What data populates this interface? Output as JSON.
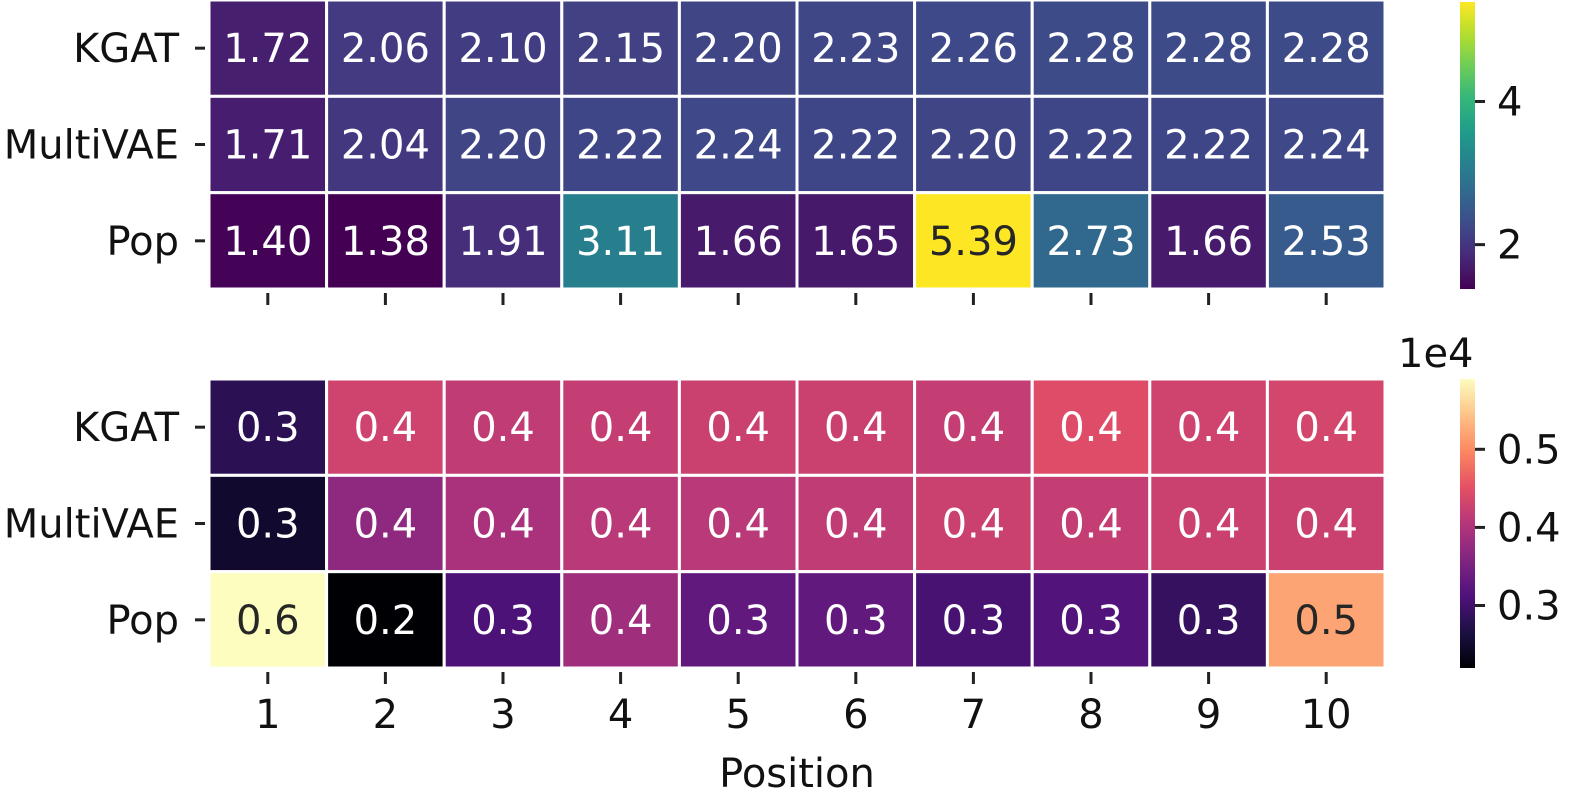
{
  "chart_data": [
    {
      "type": "heatmap",
      "x_categories": [
        "1",
        "2",
        "3",
        "4",
        "5",
        "6",
        "7",
        "8",
        "9",
        "10"
      ],
      "y_categories": [
        "KGAT",
        "MultiVAE",
        "Pop"
      ],
      "values": [
        [
          1.72,
          2.06,
          2.1,
          2.15,
          2.2,
          2.23,
          2.26,
          2.28,
          2.28,
          2.28
        ],
        [
          1.71,
          2.04,
          2.2,
          2.22,
          2.24,
          2.22,
          2.2,
          2.22,
          2.22,
          2.24
        ],
        [
          1.4,
          1.38,
          1.91,
          3.11,
          1.66,
          1.65,
          5.39,
          2.73,
          1.66,
          2.53
        ]
      ],
      "cell_labels": [
        [
          "1.72",
          "2.06",
          "2.10",
          "2.15",
          "2.20",
          "2.23",
          "2.26",
          "2.28",
          "2.28",
          "2.28"
        ],
        [
          "1.71",
          "2.04",
          "2.20",
          "2.22",
          "2.24",
          "2.22",
          "2.20",
          "2.22",
          "2.22",
          "2.24"
        ],
        [
          "1.40",
          "1.38",
          "1.91",
          "3.11",
          "1.66",
          "1.65",
          "5.39",
          "2.73",
          "1.66",
          "2.53"
        ]
      ],
      "colormap": "viridis",
      "vlim": [
        1.38,
        5.39
      ],
      "colorbar_ticks": [
        2,
        4
      ],
      "colorbar_tick_labels": [
        "2",
        "4"
      ],
      "colorbar_offset_text": "",
      "show_x_tick_labels": false,
      "xlabel": ""
    },
    {
      "type": "heatmap",
      "x_categories": [
        "1",
        "2",
        "3",
        "4",
        "5",
        "6",
        "7",
        "8",
        "9",
        "10"
      ],
      "y_categories": [
        "KGAT",
        "MultiVAE",
        "Pop"
      ],
      "values": [
        [
          2800,
          4300,
          4150,
          4200,
          4250,
          4250,
          4200,
          4450,
          4300,
          4350
        ],
        [
          2500,
          3700,
          3950,
          4100,
          4100,
          4150,
          4250,
          4200,
          4250,
          4250
        ],
        [
          5900,
          2200,
          3100,
          3850,
          3300,
          3300,
          3050,
          3150,
          2900,
          5200
        ]
      ],
      "cell_labels": [
        [
          "0.3",
          "0.4",
          "0.4",
          "0.4",
          "0.4",
          "0.4",
          "0.4",
          "0.4",
          "0.4",
          "0.4"
        ],
        [
          "0.3",
          "0.4",
          "0.4",
          "0.4",
          "0.4",
          "0.4",
          "0.4",
          "0.4",
          "0.4",
          "0.4"
        ],
        [
          "0.6",
          "0.2",
          "0.3",
          "0.4",
          "0.3",
          "0.3",
          "0.3",
          "0.3",
          "0.3",
          "0.5"
        ]
      ],
      "colormap": "magma",
      "vlim": [
        2200,
        5900
      ],
      "colorbar_ticks": [
        3000,
        4000,
        5000
      ],
      "colorbar_tick_labels": [
        "0.3",
        "0.4",
        "0.5"
      ],
      "colorbar_offset_text": "1e4",
      "show_x_tick_labels": true,
      "xlabel": "Position"
    }
  ]
}
